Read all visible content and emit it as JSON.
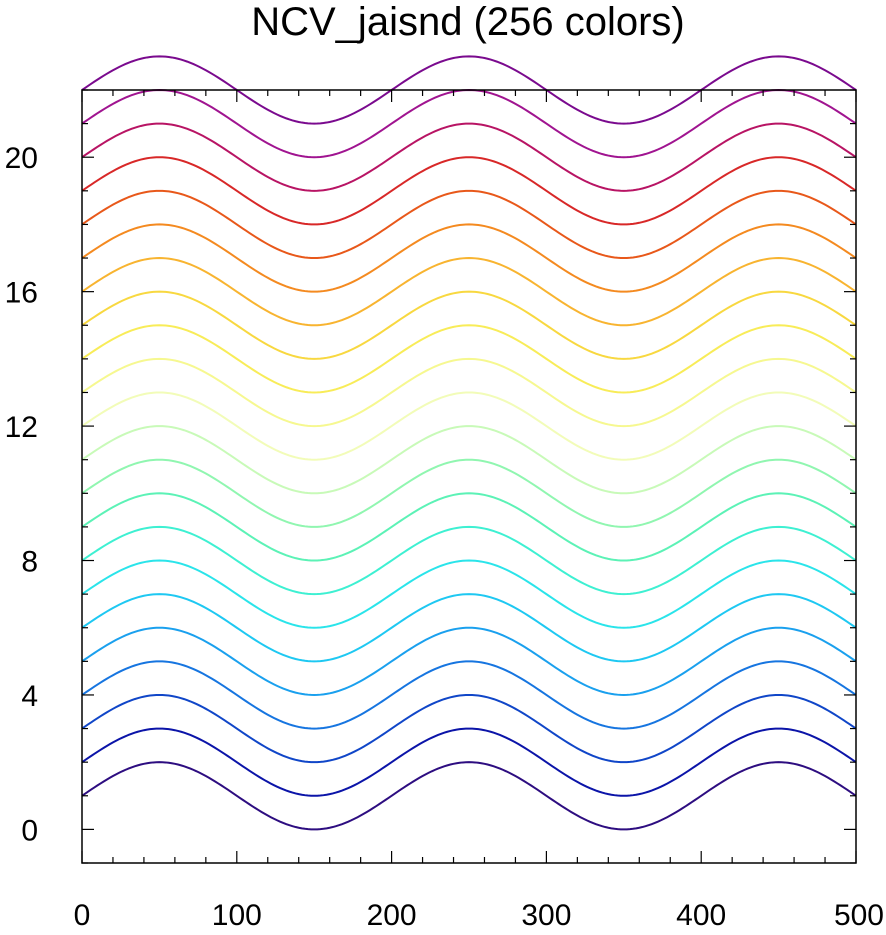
{
  "chart_data": {
    "type": "line",
    "title": "NCV_jaisnd (256 colors)",
    "xlabel": "",
    "ylabel": "",
    "xlim": [
      0,
      500
    ],
    "ylim": [
      -1,
      22
    ],
    "x_major_ticks": [
      0,
      100,
      200,
      300,
      400,
      500
    ],
    "x_minor_step": 20,
    "y_major_ticks": [
      0,
      4,
      8,
      12,
      16,
      20
    ],
    "y_minor_step": 1,
    "grid": false,
    "legend": "none",
    "x_tick_labels": [
      "0",
      "100",
      "200",
      "300",
      "400",
      "500"
    ],
    "y_tick_labels": [
      "0",
      "4",
      "8",
      "12",
      "16",
      "20"
    ],
    "curve": {
      "formula": "y = offset + sin(2*pi*x/200)",
      "period": 200,
      "amplitude": 1,
      "x_start": 0,
      "x_end": 500
    },
    "series": [
      {
        "offset": 1,
        "color": "#2d0d80"
      },
      {
        "offset": 2,
        "color": "#0b14a8"
      },
      {
        "offset": 3,
        "color": "#1046c8"
      },
      {
        "offset": 4,
        "color": "#1675e0"
      },
      {
        "offset": 5,
        "color": "#1aa0ee"
      },
      {
        "offset": 6,
        "color": "#1ec8f2"
      },
      {
        "offset": 7,
        "color": "#2ae4ea"
      },
      {
        "offset": 8,
        "color": "#3ef0d2"
      },
      {
        "offset": 9,
        "color": "#5cf2b6"
      },
      {
        "offset": 10,
        "color": "#90f6b0"
      },
      {
        "offset": 11,
        "color": "#c8fab8"
      },
      {
        "offset": 12,
        "color": "#f2fcb8"
      },
      {
        "offset": 13,
        "color": "#f6f890"
      },
      {
        "offset": 14,
        "color": "#f8ec58"
      },
      {
        "offset": 15,
        "color": "#f8d840"
      },
      {
        "offset": 16,
        "color": "#f8b430"
      },
      {
        "offset": 17,
        "color": "#f48a20"
      },
      {
        "offset": 18,
        "color": "#e8581a"
      },
      {
        "offset": 19,
        "color": "#d82828"
      },
      {
        "offset": 20,
        "color": "#b81464"
      },
      {
        "offset": 21,
        "color": "#a01490"
      },
      {
        "offset": 22,
        "color": "#7a0a8e"
      }
    ]
  }
}
